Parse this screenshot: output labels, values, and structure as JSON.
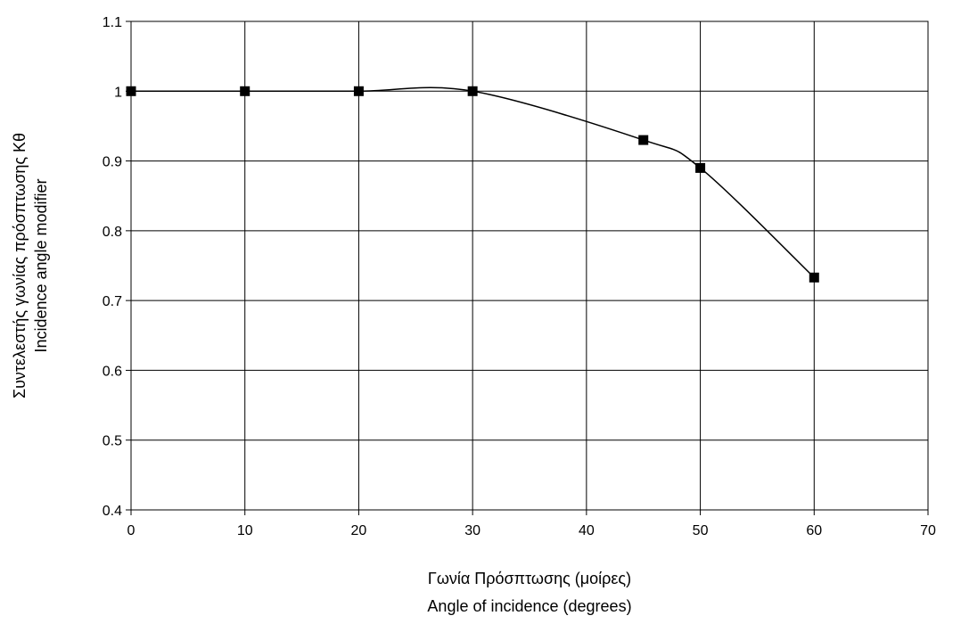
{
  "chart_data": {
    "type": "line",
    "title": "",
    "xlabel": [
      "Γωνία Πρόσπτωσης  (μοίρες)",
      "Angle of incidence  (degrees)"
    ],
    "ylabel": [
      "Συντελεστής γωνίας πρόσπτωσης Kθ",
      "Incidence angle modifier"
    ],
    "xlim": [
      0,
      70
    ],
    "ylim": [
      0.4,
      1.1
    ],
    "xticks": [
      0,
      10,
      20,
      30,
      40,
      50,
      60,
      70
    ],
    "yticks": [
      0.4,
      0.5,
      0.6,
      0.7,
      0.8,
      0.9,
      1,
      1.1
    ],
    "grid": true,
    "legend": "none",
    "series": [
      {
        "x": [
          0,
          10,
          20,
          30,
          45,
          50,
          60
        ],
        "y": [
          1.0,
          1.0,
          1.0,
          1.0,
          0.93,
          0.89,
          0.733
        ],
        "marker": "square",
        "line": "smooth",
        "color": "#000000"
      }
    ]
  }
}
